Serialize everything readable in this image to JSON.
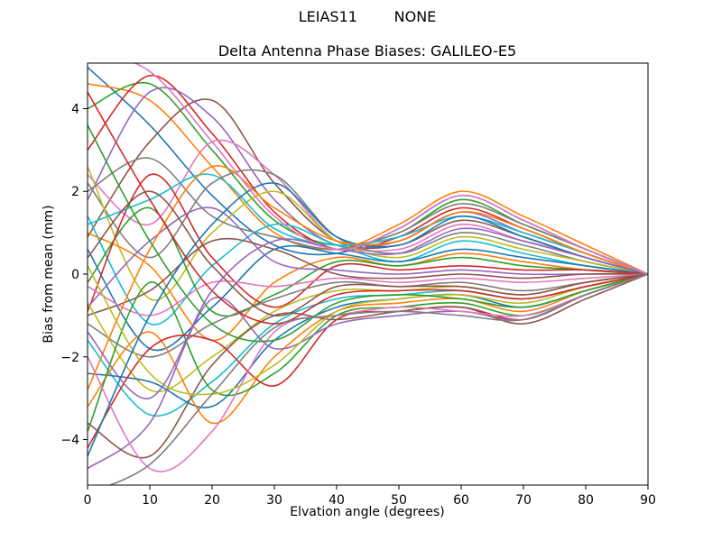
{
  "figure": {
    "background": "#ffffff",
    "spine_color": "#000000"
  },
  "chart_data": {
    "type": "line",
    "suptitle": "LEIAS11        NONE",
    "title": "Delta Antenna Phase Biases: GALILEO-E5",
    "xlabel": "Elvation angle (degrees)",
    "ylabel": "Bias from mean (mm)",
    "xlim": [
      0,
      90
    ],
    "ylim": [
      -5.1,
      5.1
    ],
    "xticks": [
      0,
      10,
      20,
      30,
      40,
      50,
      60,
      70,
      80,
      90
    ],
    "xtick_labels": [
      "0",
      "10",
      "20",
      "30",
      "40",
      "50",
      "60",
      "70",
      "80",
      "90"
    ],
    "yticks": [
      -4,
      -2,
      0,
      2,
      4
    ],
    "ytick_labels": [
      "−4",
      "−2",
      "0",
      "2",
      "4"
    ],
    "grid": false,
    "legend": "none",
    "palette": [
      "#1f77b4",
      "#ff7f0e",
      "#2ca02c",
      "#d62728",
      "#9467bd",
      "#8c564b",
      "#e377c2",
      "#7f7f7f",
      "#bcbd22",
      "#17becf"
    ],
    "x": [
      0,
      10,
      20,
      30,
      40,
      50,
      60,
      70,
      80,
      90
    ],
    "series": [
      {
        "name": "line-1",
        "values": [
          5.0,
          3.6,
          1.9,
          0.7,
          0.5,
          1.1,
          1.9,
          1.3,
          0.6,
          0
        ]
      },
      {
        "name": "line-2",
        "values": [
          4.6,
          4.2,
          2.6,
          1.0,
          0.6,
          1.2,
          2.0,
          1.4,
          0.7,
          0
        ]
      },
      {
        "name": "line-3",
        "values": [
          4.0,
          4.6,
          3.0,
          1.3,
          0.7,
          1.0,
          1.8,
          1.2,
          0.6,
          0
        ]
      },
      {
        "name": "line-4",
        "values": [
          3.0,
          4.8,
          3.4,
          1.5,
          0.6,
          0.9,
          1.6,
          1.1,
          0.5,
          0
        ]
      },
      {
        "name": "line-5",
        "values": [
          1.8,
          4.4,
          3.8,
          1.8,
          0.7,
          0.8,
          1.5,
          1.0,
          0.5,
          0
        ]
      },
      {
        "name": "line-6",
        "values": [
          0.9,
          3.2,
          4.2,
          2.2,
          0.8,
          0.7,
          1.3,
          0.9,
          0.4,
          0
        ]
      },
      {
        "name": "line-7",
        "values": [
          2.4,
          1.2,
          3.2,
          2.4,
          0.8,
          0.6,
          1.2,
          0.8,
          0.4,
          0
        ]
      },
      {
        "name": "line-8",
        "values": [
          2.2,
          0.4,
          2.2,
          2.4,
          0.9,
          0.5,
          1.0,
          0.7,
          0.3,
          0
        ]
      },
      {
        "name": "line-9",
        "values": [
          2.6,
          -0.6,
          1.0,
          2.0,
          0.8,
          0.4,
          0.9,
          0.6,
          0.3,
          0
        ]
      },
      {
        "name": "line-10",
        "values": [
          1.4,
          -1.2,
          0.2,
          1.2,
          0.7,
          0.3,
          0.8,
          0.5,
          0.2,
          0
        ]
      },
      {
        "name": "line-11",
        "values": [
          0.6,
          -1.8,
          -0.8,
          0.6,
          0.5,
          0.3,
          0.6,
          0.4,
          0.2,
          0
        ]
      },
      {
        "name": "line-12",
        "values": [
          1.0,
          0.2,
          -1.6,
          -0.2,
          0.4,
          0.2,
          0.5,
          0.3,
          0.1,
          0
        ]
      },
      {
        "name": "line-13",
        "values": [
          -0.2,
          1.6,
          -0.9,
          -0.5,
          0.3,
          0.2,
          0.4,
          0.2,
          0.1,
          0
        ]
      },
      {
        "name": "line-14",
        "values": [
          -0.9,
          2.4,
          0.4,
          -0.8,
          0.2,
          0.1,
          0.2,
          0.1,
          0.1,
          0
        ]
      },
      {
        "name": "line-15",
        "values": [
          -0.8,
          0.8,
          1.6,
          0.3,
          0.1,
          0.0,
          0.1,
          0.0,
          0.0,
          0
        ]
      },
      {
        "name": "line-16",
        "values": [
          -1.0,
          -0.4,
          0.8,
          0.6,
          0.0,
          -0.1,
          0.0,
          -0.1,
          0.0,
          0
        ]
      },
      {
        "name": "line-17",
        "values": [
          -0.3,
          -1.0,
          -0.2,
          -0.3,
          -0.1,
          -0.2,
          -0.1,
          -0.2,
          -0.1,
          0
        ]
      },
      {
        "name": "line-18",
        "values": [
          -1.2,
          -2.0,
          -1.2,
          -0.6,
          -0.2,
          -0.3,
          -0.2,
          -0.4,
          -0.2,
          0
        ]
      },
      {
        "name": "line-19",
        "values": [
          -0.7,
          -2.8,
          -2.0,
          -0.9,
          -0.4,
          -0.4,
          -0.3,
          -0.5,
          -0.2,
          0
        ]
      },
      {
        "name": "line-20",
        "values": [
          -1.6,
          -3.4,
          -2.6,
          -1.2,
          -0.6,
          -0.5,
          -0.4,
          -0.6,
          -0.3,
          0
        ]
      },
      {
        "name": "line-21",
        "values": [
          -2.4,
          -2.6,
          -3.2,
          -1.6,
          -0.8,
          -0.6,
          -0.5,
          -0.8,
          -0.4,
          0
        ]
      },
      {
        "name": "line-22",
        "values": [
          -3.2,
          -1.4,
          -3.6,
          -2.0,
          -0.9,
          -0.7,
          -0.6,
          -0.9,
          -0.4,
          0
        ]
      },
      {
        "name": "line-23",
        "values": [
          -3.8,
          -0.2,
          -2.8,
          -2.4,
          -1.0,
          -0.8,
          -0.7,
          -1.0,
          -0.5,
          0
        ]
      },
      {
        "name": "line-24",
        "values": [
          -4.2,
          -1.8,
          -1.6,
          -2.7,
          -1.1,
          -0.9,
          -0.8,
          -1.1,
          -0.5,
          0
        ]
      },
      {
        "name": "line-25",
        "values": [
          -4.7,
          -3.6,
          -0.6,
          -1.8,
          -1.2,
          -1.0,
          -0.9,
          -1.1,
          -0.5,
          0
        ]
      },
      {
        "name": "line-26",
        "values": [
          -3.6,
          -4.4,
          -2.2,
          -1.0,
          -1.1,
          -0.9,
          -0.8,
          -1.2,
          -0.6,
          0
        ]
      },
      {
        "name": "line-27",
        "values": [
          -2.0,
          -4.7,
          -3.8,
          -1.4,
          -1.0,
          -0.8,
          -0.9,
          -1.0,
          -0.5,
          0
        ]
      },
      {
        "name": "line-28",
        "values": [
          2.0,
          2.8,
          1.4,
          0.9,
          0.6,
          1.0,
          1.7,
          1.2,
          0.6,
          0
        ]
      },
      {
        "name": "line-29",
        "values": [
          0.2,
          -2.4,
          -2.9,
          -2.2,
          -0.9,
          -0.6,
          -0.5,
          -0.7,
          -0.3,
          0
        ]
      },
      {
        "name": "line-30",
        "values": [
          1.2,
          1.8,
          2.4,
          1.1,
          0.7,
          0.9,
          1.4,
          1.0,
          0.5,
          0
        ]
      },
      {
        "name": "line-31",
        "values": [
          -4.4,
          -1.0,
          1.2,
          2.2,
          0.9,
          0.7,
          1.4,
          0.9,
          0.4,
          0
        ]
      },
      {
        "name": "line-32",
        "values": [
          -2.8,
          0.6,
          2.6,
          1.6,
          0.8,
          0.8,
          1.5,
          1.1,
          0.5,
          0
        ]
      },
      {
        "name": "line-33",
        "values": [
          3.6,
          0.8,
          -1.2,
          -1.6,
          -0.7,
          -0.5,
          -0.6,
          -0.8,
          -0.4,
          0
        ]
      },
      {
        "name": "line-34",
        "values": [
          4.4,
          1.8,
          -0.4,
          -1.2,
          -0.5,
          -0.4,
          -0.4,
          -0.6,
          -0.3,
          0
        ]
      },
      {
        "name": "line-35",
        "values": [
          -1.4,
          -3.0,
          -0.4,
          0.8,
          0.6,
          0.5,
          1.1,
          0.8,
          0.4,
          0
        ]
      },
      {
        "name": "line-36",
        "values": [
          0.4,
          2.0,
          0.2,
          -1.0,
          -0.3,
          -0.3,
          -0.3,
          -0.5,
          -0.2,
          0
        ]
      },
      {
        "name": "line-37",
        "values": [
          5.4,
          4.9,
          3.2,
          1.4,
          0.6,
          1.1,
          1.9,
          1.3,
          0.6,
          0
        ]
      },
      {
        "name": "line-38",
        "values": [
          -5.3,
          -4.6,
          -2.9,
          -1.3,
          -1.0,
          -0.9,
          -1.0,
          -1.1,
          -0.5,
          0
        ]
      }
    ]
  }
}
